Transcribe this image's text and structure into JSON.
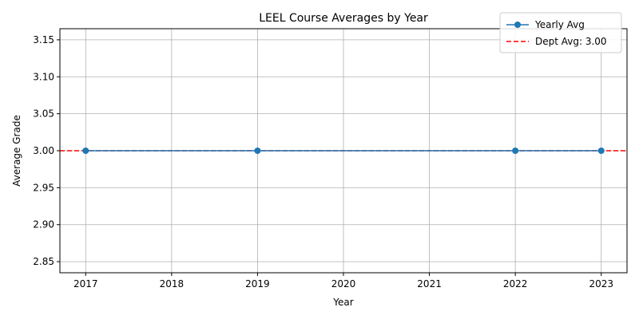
{
  "chart_data": {
    "type": "line",
    "title": "LEEL Course Averages by Year",
    "xlabel": "Year",
    "ylabel": "Average Grade",
    "xlim": [
      2016.7,
      2023.3
    ],
    "ylim": [
      2.835,
      3.165
    ],
    "x_ticks": [
      2017,
      2018,
      2019,
      2020,
      2021,
      2022,
      2023
    ],
    "y_ticks": [
      2.85,
      2.9,
      2.95,
      3.0,
      3.05,
      3.1,
      3.15
    ],
    "grid": true,
    "legend_position": "top-right",
    "series": [
      {
        "name": "Yearly Avg",
        "style": "solid-marker",
        "color": "#1f77b4",
        "x": [
          2017,
          2019,
          2022,
          2023
        ],
        "y": [
          3.0,
          3.0,
          3.0,
          3.0
        ]
      }
    ],
    "reference_lines": [
      {
        "name": "Dept Avg: 3.00",
        "value": 3.0,
        "style": "dashed",
        "color": "#ff0000"
      }
    ]
  }
}
